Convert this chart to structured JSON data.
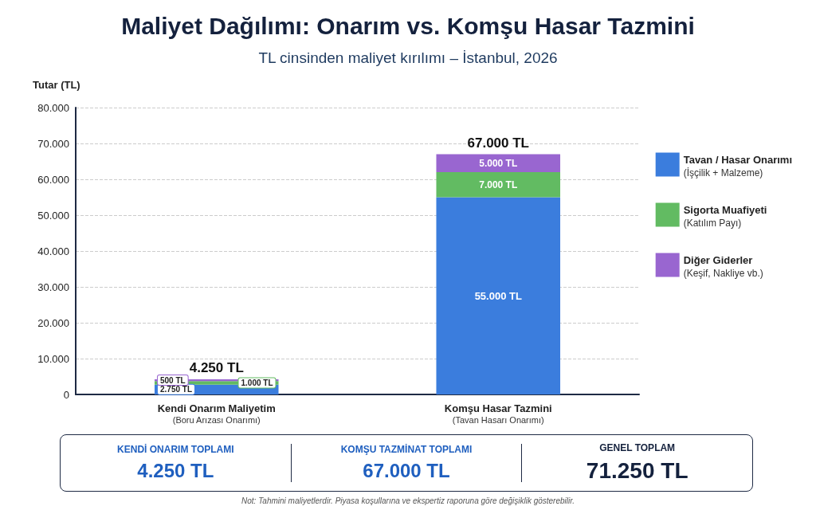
{
  "chart_data": {
    "type": "bar",
    "title": "Maliyet Dağılımı: Onarım vs. Komşu Hasar Tazmini",
    "subtitle": "TL cinsinden maliyet kırılımı – İstanbul, 2026",
    "ylabel": "Tutar (TL)",
    "categories": [
      "Kendi Onarım Maliyetim\n(Boru Arızası Onarımı)",
      "Komşu Hasar Tazmini\n(Tavan Hasarı Onarımı)"
    ],
    "stacked": true,
    "series": [
      {
        "name": "Tavan / Hasar Onarımı\n(İşçilik + Malzeme)",
        "color": "#3b7ddd",
        "values": [
          2750,
          55000
        ],
        "value_labels": [
          "2.750 TL",
          "55.000 TL"
        ]
      },
      {
        "name": "Sigorta Muafiyeti\n(Katılım Payı)",
        "color": "#62bb62",
        "values": [
          1000,
          7000
        ],
        "value_labels": [
          "1.000 TL",
          "7.000 TL"
        ]
      },
      {
        "name": "Diğer Giderler\n(Keşif, Nakliye vb.)",
        "color": "#9966d0",
        "values": [
          500,
          5000
        ],
        "value_labels": [
          "500 TL",
          "5.000 TL"
        ]
      }
    ],
    "totals": [
      "4.250 TL",
      "67.000 TL"
    ],
    "ylim": [
      0,
      80000
    ],
    "yticks": [
      0,
      {
        "value": 10000,
        "label": "10.000"
      },
      {
        "value": 20000,
        "label": "20.000"
      },
      {
        "value": 30000,
        "label": "30.000"
      },
      {
        "value": 40000,
        "label": "40.000"
      },
      {
        "value": 50000,
        "label": "50.000"
      },
      {
        "value": 60000,
        "label": "60.000"
      },
      {
        "value": 70000,
        "label": "70.000"
      },
      {
        "value": 80000,
        "label": "80.000"
      }
    ],
    "grid": "y",
    "legend": "right",
    "annotations": [
      "KENDİ ONARIM TOPLAMI",
      "4.250 TL",
      "KOMŞU TAZMİNAT TOPLAMI",
      "67.000 TL",
      "GENEL TOPLAM",
      "71.250 TL",
      "Not: Tahmini maliyetlerdir. Piyasa koşullarına ve ekspertiz raporuna göre değişiklik gösterebilir."
    ]
  }
}
